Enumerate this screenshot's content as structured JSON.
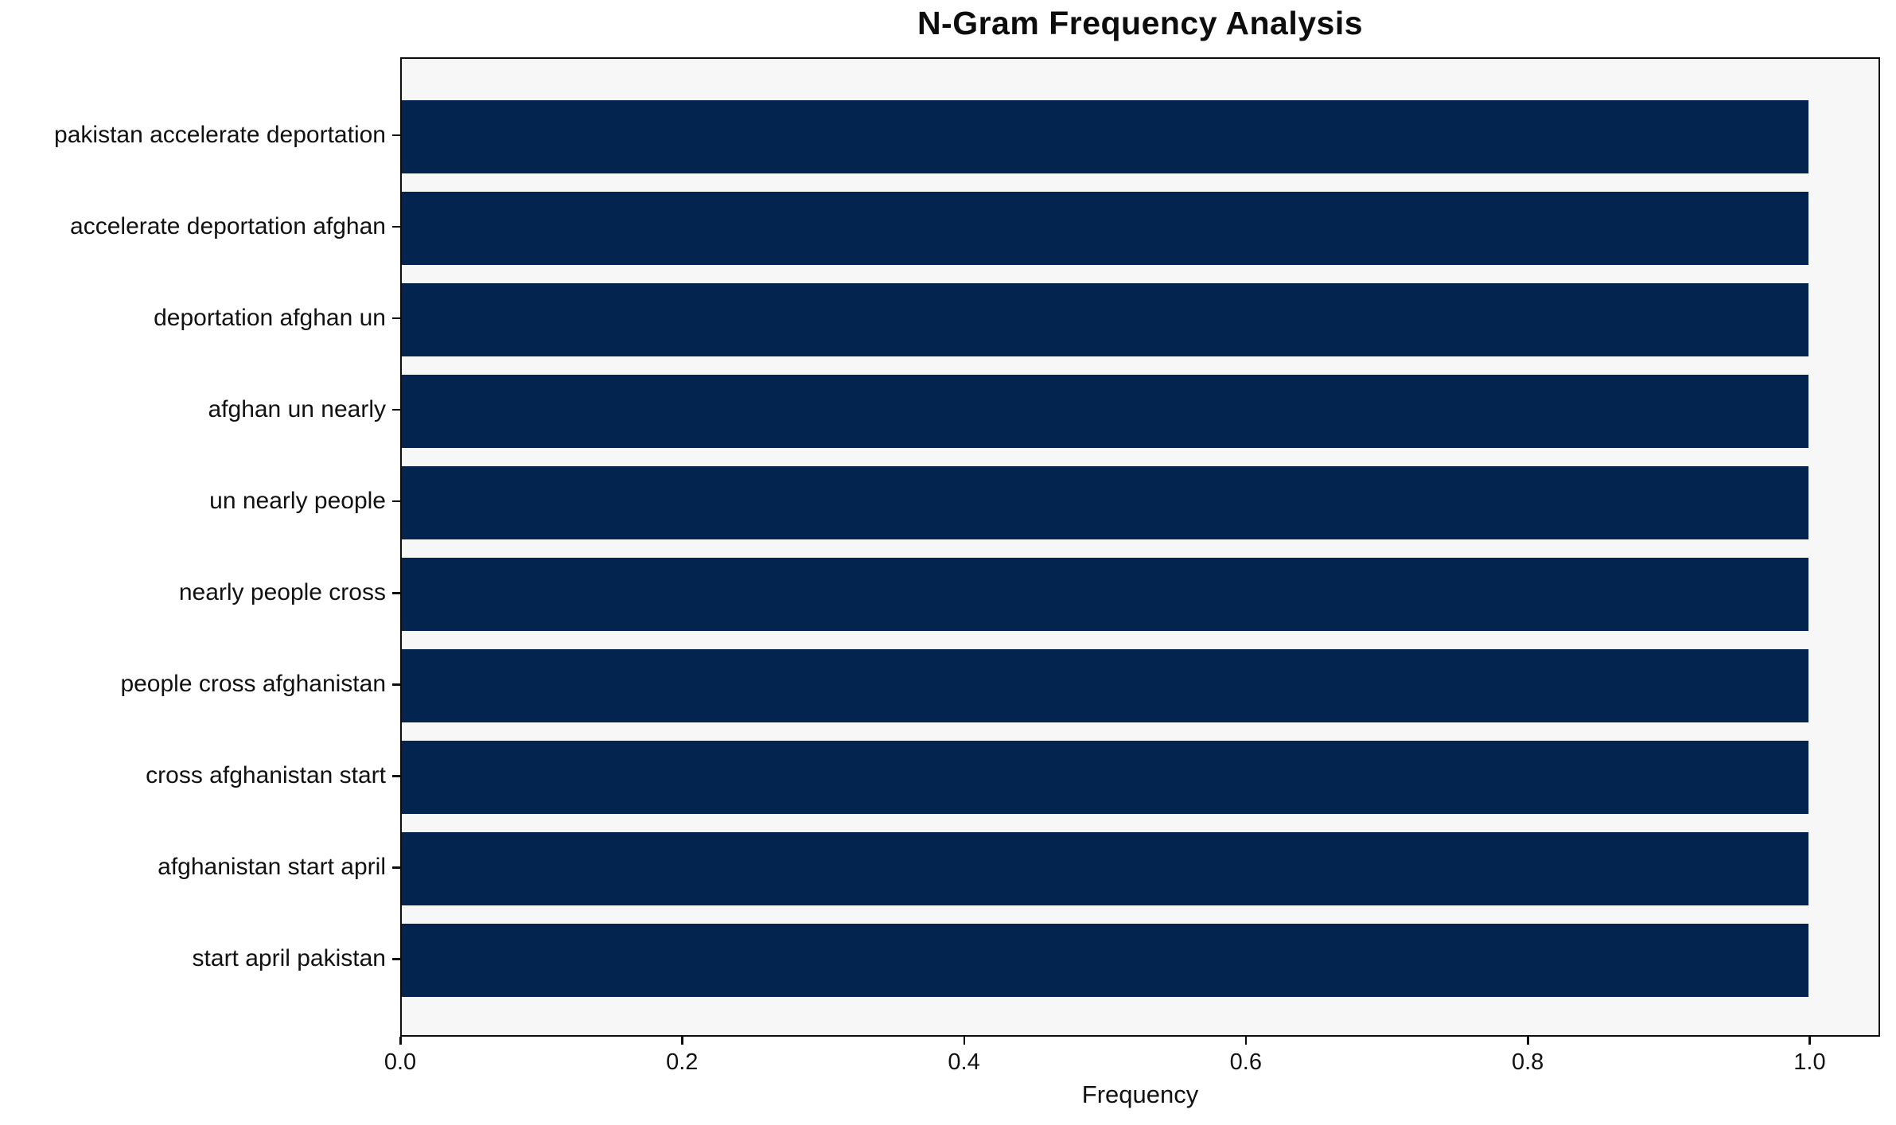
{
  "chart_data": {
    "type": "bar",
    "orientation": "horizontal",
    "title": "N-Gram Frequency Analysis",
    "xlabel": "Frequency",
    "ylabel": "",
    "categories": [
      "pakistan accelerate deportation",
      "accelerate deportation afghan",
      "deportation afghan un",
      "afghan un nearly",
      "un nearly people",
      "nearly people cross",
      "people cross afghanistan",
      "cross afghanistan start",
      "afghanistan start april",
      "start april pakistan"
    ],
    "values": [
      1.0,
      1.0,
      1.0,
      1.0,
      1.0,
      1.0,
      1.0,
      1.0,
      1.0,
      1.0
    ],
    "xlim": [
      0.0,
      1.05
    ],
    "xticks": [
      0.0,
      0.2,
      0.4,
      0.6,
      0.8,
      1.0
    ],
    "xtick_labels": [
      "0.0",
      "0.2",
      "0.4",
      "0.6",
      "0.8",
      "1.0"
    ],
    "grid": false,
    "legend_position": "none",
    "colors": {
      "bar": "#02244e",
      "plot_background": "#f7f7f8",
      "figure_background": "#ffffff",
      "axis_line": "#0d0d0d",
      "text": "#111111"
    }
  }
}
